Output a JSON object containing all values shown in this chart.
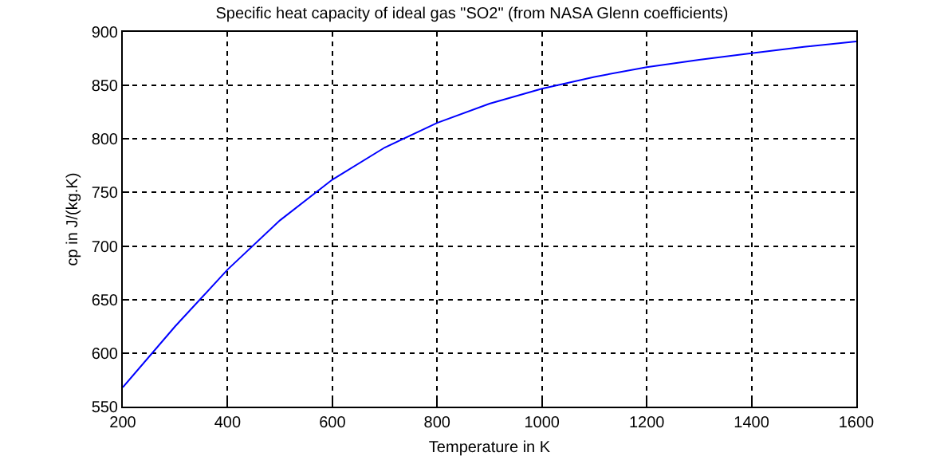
{
  "chart_data": {
    "type": "line",
    "title": "Specific heat capacity of ideal gas \"SO2\" (from NASA Glenn coefficients)",
    "xlabel": "Temperature in K",
    "ylabel": "cp in J/(kg.K)",
    "x": [
      200,
      300,
      400,
      500,
      600,
      700,
      800,
      900,
      1000,
      1100,
      1200,
      1300,
      1400,
      1500,
      1600
    ],
    "series": [
      {
        "color": "#0000ff",
        "values": [
          568,
          625,
          678,
          724,
          762,
          792,
          815,
          833,
          847,
          858,
          867,
          874,
          880,
          886,
          891
        ]
      }
    ],
    "xlim": [
      200,
      1600
    ],
    "xticks": [
      200,
      400,
      600,
      800,
      1000,
      1200,
      1400,
      1600
    ],
    "ylim": [
      550,
      900
    ],
    "yticks": [
      550,
      600,
      650,
      700,
      750,
      800,
      850,
      900
    ],
    "grid": true,
    "line_style": "solid",
    "marker": "none"
  }
}
